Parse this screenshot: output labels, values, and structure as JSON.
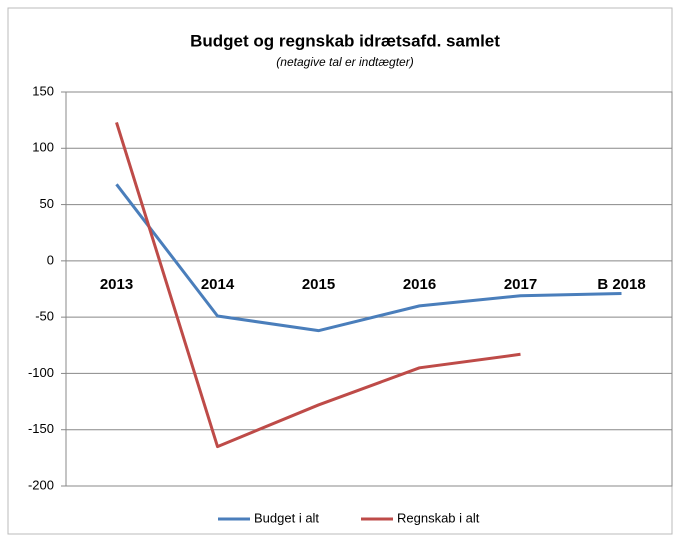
{
  "chart_data": {
    "type": "line",
    "title": "Budget og regnskab idrætsafd. samlet",
    "subtitle": "(netagive tal er indtægter)",
    "categories": [
      "2013",
      "2014",
      "2015",
      "2016",
      "2017",
      "B 2018"
    ],
    "series": [
      {
        "name": "Budget i alt",
        "color": "#4a7ebb",
        "values": [
          68,
          -49,
          -62,
          -40,
          -31,
          -29
        ]
      },
      {
        "name": "Regnskab i alt",
        "color": "#be4b48",
        "values": [
          123,
          -165,
          -128,
          -95,
          -83,
          null
        ]
      }
    ],
    "ylim": [
      -200,
      150
    ],
    "yticks": [
      -200,
      -150,
      -100,
      -50,
      0,
      50,
      100,
      150
    ],
    "grid": true,
    "legend": "bottom"
  }
}
